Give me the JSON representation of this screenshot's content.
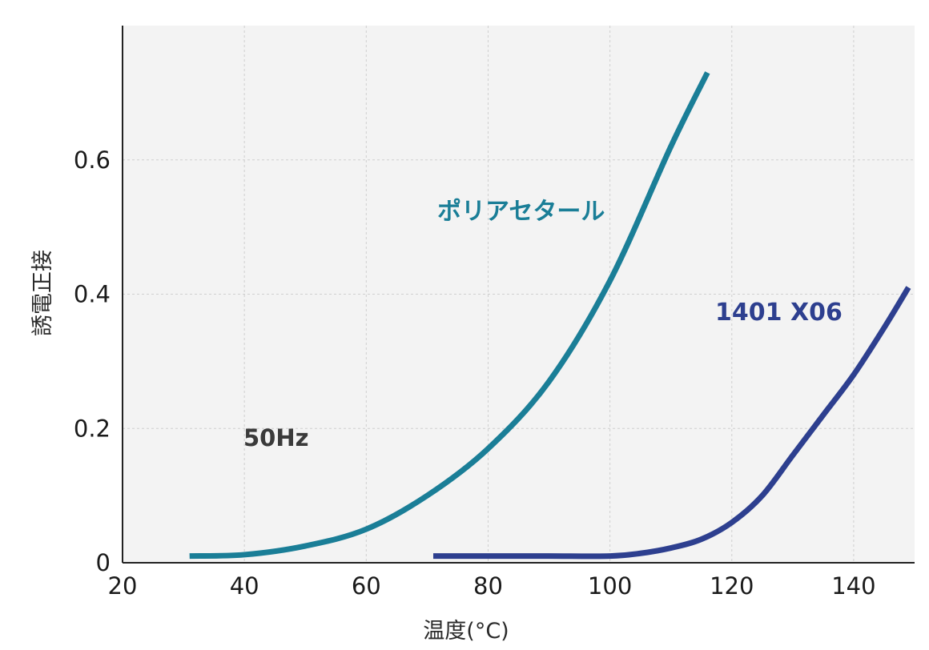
{
  "chart_data": {
    "type": "line",
    "xlabel": "温度(°C)",
    "ylabel": "誘電正接",
    "xlim": [
      20,
      150
    ],
    "ylim": [
      0,
      0.8
    ],
    "xticks": [
      20,
      40,
      60,
      80,
      100,
      120,
      140
    ],
    "xtick_labels": [
      "20",
      "40",
      "60",
      "80",
      "100",
      "120",
      "140"
    ],
    "yticks": [
      0,
      0.2,
      0.4,
      0.6
    ],
    "ytick_labels": [
      "0",
      "0.2",
      "0.4",
      "0.6"
    ],
    "grid": true,
    "background": "#f3f3f3",
    "annotation": "50Hz",
    "series": [
      {
        "name": "ポリアセタール",
        "color": "#1a7e97",
        "x": [
          31,
          40,
          50,
          60,
          70,
          80,
          90,
          100,
          110,
          116
        ],
        "y": [
          0.01,
          0.012,
          0.025,
          0.05,
          0.1,
          0.17,
          0.27,
          0.42,
          0.62,
          0.73
        ]
      },
      {
        "name": "1401 X06",
        "color": "#2d3f8f",
        "x": [
          71,
          80,
          90,
          100,
          105,
          110,
          115,
          120,
          125,
          130,
          135,
          140,
          145,
          149
        ],
        "y": [
          0.01,
          0.01,
          0.01,
          0.01,
          0.014,
          0.022,
          0.035,
          0.06,
          0.1,
          0.16,
          0.22,
          0.28,
          0.35,
          0.41
        ]
      }
    ]
  }
}
